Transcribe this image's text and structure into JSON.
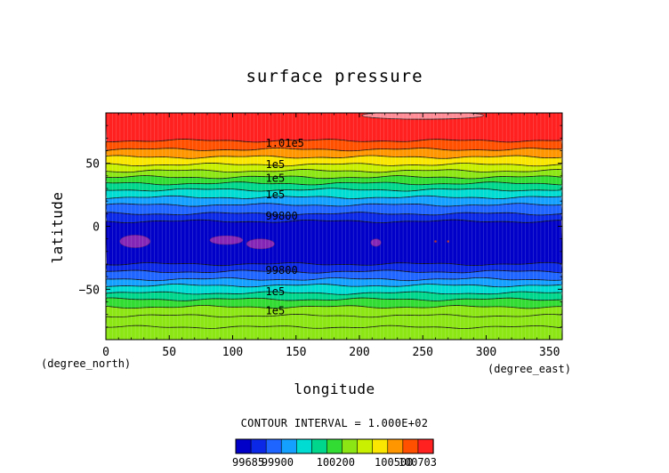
{
  "chart_data": {
    "type": "contour",
    "title": "surface pressure",
    "xlabel": "longitude",
    "ylabel": "latitude",
    "x_units": "(degree_east)",
    "y_units": "(degree_north)",
    "xlim": [
      0,
      360
    ],
    "ylim": [
      -90,
      90
    ],
    "x_ticks": [
      0,
      50,
      100,
      150,
      200,
      250,
      300,
      350
    ],
    "y_ticks": [
      -50,
      0,
      50
    ],
    "contour_interval_text": "CONTOUR INTERVAL = 1.000E+02",
    "contour_interval": 100,
    "value_range": [
      99685,
      100703
    ],
    "colorbar_tick_labels": [
      "99685",
      "99900",
      "100200",
      "100500",
      "100703"
    ],
    "colorbar_colors": [
      "#0000c8",
      "#0a28e6",
      "#1e64ff",
      "#14a0ff",
      "#00dcd2",
      "#00d78c",
      "#32dc32",
      "#8ce614",
      "#c8f000",
      "#fae600",
      "#ff9600",
      "#ff5000",
      "#ff2020"
    ],
    "latitude_bands": [
      {
        "lat_from": 90,
        "lat_to": 68,
        "color": "#ff2020"
      },
      {
        "lat_from": 68,
        "lat_to": 61,
        "color": "#ff5000"
      },
      {
        "lat_from": 61,
        "lat_to": 55,
        "color": "#ff9600"
      },
      {
        "lat_from": 55,
        "lat_to": 49,
        "color": "#fae600"
      },
      {
        "lat_from": 49,
        "lat_to": 44,
        "color": "#c8f000"
      },
      {
        "lat_from": 44,
        "lat_to": 39,
        "color": "#8ce614"
      },
      {
        "lat_from": 39,
        "lat_to": 34,
        "color": "#32dc32"
      },
      {
        "lat_from": 34,
        "lat_to": 29,
        "color": "#00d78c"
      },
      {
        "lat_from": 29,
        "lat_to": 23,
        "color": "#00dcd2"
      },
      {
        "lat_from": 23,
        "lat_to": 17,
        "color": "#14a0ff"
      },
      {
        "lat_from": 17,
        "lat_to": 10,
        "color": "#1e64ff"
      },
      {
        "lat_from": 10,
        "lat_to": 4,
        "color": "#0a28e6"
      },
      {
        "lat_from": 4,
        "lat_to": -30,
        "color": "#0000c8"
      },
      {
        "lat_from": -30,
        "lat_to": -36,
        "color": "#0a28e6"
      },
      {
        "lat_from": -36,
        "lat_to": -42,
        "color": "#1e64ff"
      },
      {
        "lat_from": -42,
        "lat_to": -47,
        "color": "#14a0ff"
      },
      {
        "lat_from": -47,
        "lat_to": -53,
        "color": "#00dcd2"
      },
      {
        "lat_from": -53,
        "lat_to": -58,
        "color": "#00d78c"
      },
      {
        "lat_from": -58,
        "lat_to": -64,
        "color": "#32dc32"
      },
      {
        "lat_from": -64,
        "lat_to": -71,
        "color": "#8ce614"
      },
      {
        "lat_from": -71,
        "lat_to": -80,
        "color": "#8ce614"
      },
      {
        "lat_from": -80,
        "lat_to": -90,
        "color": "#8ce614"
      }
    ],
    "contour_lines_lat": [
      68,
      61,
      55,
      49,
      44,
      39,
      34,
      29,
      23,
      17,
      10,
      4,
      -30,
      -36,
      -42,
      -47,
      -53,
      -58,
      -64,
      -71,
      -80
    ],
    "contour_labels": [
      {
        "text": "1.01e5",
        "lon": 126,
        "lat": 66
      },
      {
        "text": "1e5",
        "lon": 126,
        "lat": 49
      },
      {
        "text": "1e5",
        "lon": 126,
        "lat": 38
      },
      {
        "text": "1e5",
        "lon": 126,
        "lat": 25
      },
      {
        "text": "99800",
        "lon": 126,
        "lat": 8
      },
      {
        "text": "99800",
        "lon": 126,
        "lat": -35
      },
      {
        "text": "1e5",
        "lon": 126,
        "lat": -52
      },
      {
        "text": "1e5",
        "lon": 126,
        "lat": -67
      }
    ],
    "high_region": {
      "lon_center": 250,
      "lat_center": 88,
      "lon_radius": 48,
      "lat_radius": 3,
      "color": "#ff8c96"
    },
    "low_regions": [
      {
        "lon_center": 23,
        "lat_center": -12,
        "lon_radius": 12,
        "lat_radius": 5
      },
      {
        "lon_center": 95,
        "lat_center": -11,
        "lon_radius": 13,
        "lat_radius": 3.5
      },
      {
        "lon_center": 122,
        "lat_center": -14,
        "lon_radius": 11,
        "lat_radius": 4
      },
      {
        "lon_center": 213,
        "lat_center": -13,
        "lon_radius": 4,
        "lat_radius": 3
      }
    ],
    "low_region_color": "#8c28b4",
    "grid": false
  }
}
